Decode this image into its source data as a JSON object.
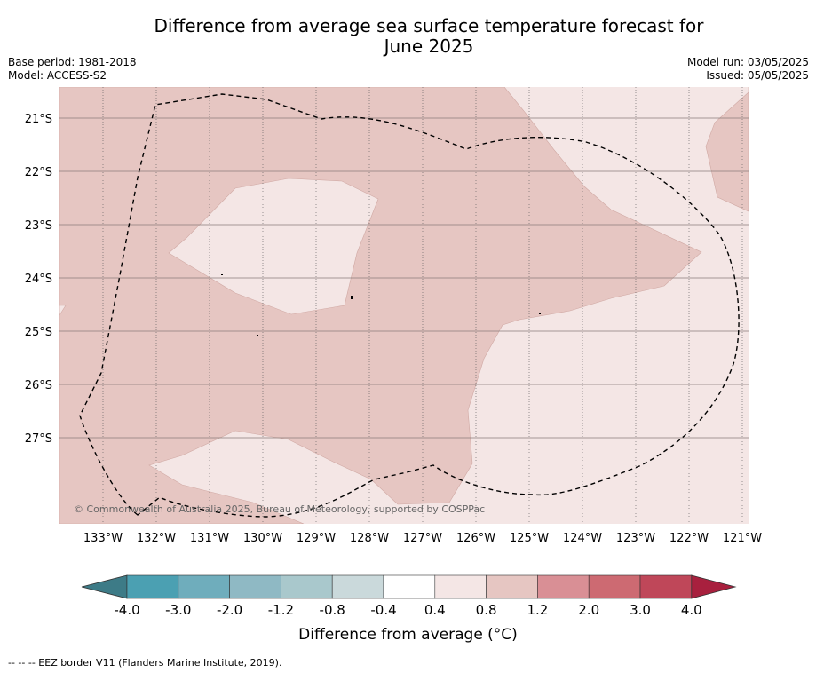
{
  "title": {
    "line1": "Difference from average sea surface temperature forecast for",
    "line2": "June 2025"
  },
  "meta": {
    "base_period": "Base period: 1981-2018",
    "model": "Model: ACCESS-S2",
    "model_run": "Model run: 03/05/2025",
    "issued": "Issued: 05/05/2025"
  },
  "map": {
    "lon_labels": [
      "133°W",
      "132°W",
      "131°W",
      "130°W",
      "129°W",
      "128°W",
      "127°W",
      "126°W",
      "125°W",
      "124°W",
      "123°W",
      "122°W",
      "121°W"
    ],
    "lat_labels": [
      "21°S",
      "22°S",
      "23°S",
      "24°S",
      "25°S",
      "26°S",
      "27°S"
    ],
    "copyright": "© Commonwealth of Australia 2025, Bureau of Meteorology, supported by COSPPac",
    "colors": {
      "anom_0_4_0_8": "#f4e6e5",
      "anom_0_8_1_2": "#e6c6c2",
      "grid": "#555555",
      "eez": "#000000"
    }
  },
  "colorbar": {
    "ticks": [
      "-4.0",
      "-3.0",
      "-2.0",
      "-1.2",
      "-0.8",
      "-0.4",
      "0.4",
      "0.8",
      "1.2",
      "2.0",
      "3.0",
      "4.0"
    ],
    "colors": [
      "#3d7b87",
      "#4ba0b2",
      "#6fadbc",
      "#8fb9c4",
      "#a9c8cc",
      "#cad9db",
      "#ffffff",
      "#f4e6e5",
      "#e6c6c2",
      "#d98f95",
      "#cd6a72",
      "#bf4759",
      "#a8203e"
    ],
    "label": "Difference from average (°C)"
  },
  "footer": "--  --  -- EEZ border V11 (Flanders Marine Institute, 2019)."
}
